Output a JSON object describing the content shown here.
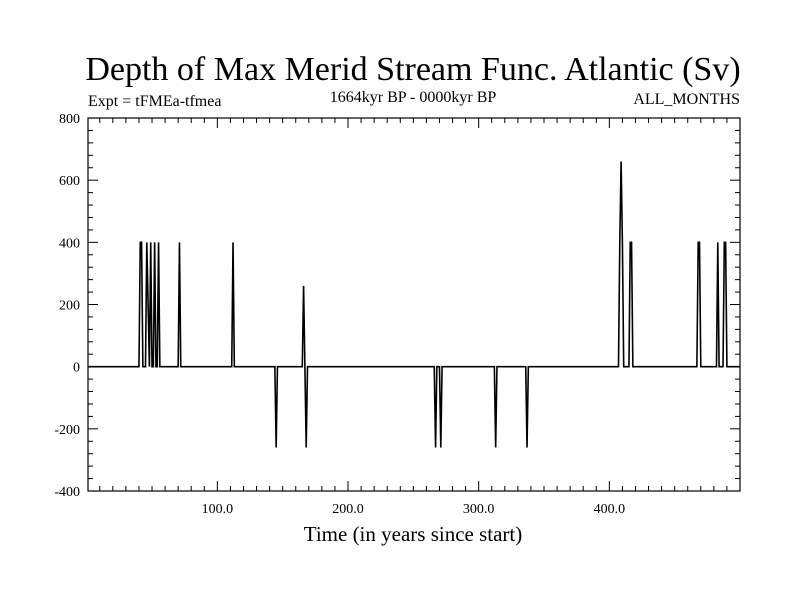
{
  "chart_data": {
    "type": "line",
    "title": "Depth of Max Merid Stream Func. Atlantic (Sv)",
    "subtitle_left": "Expt = tFMEa-tfmea",
    "subtitle_center": "1664kyr BP - 0000kyr BP",
    "subtitle_right": "ALL_MONTHS",
    "xlabel": "Time (in years since start)",
    "ylabel": "",
    "xlim": [
      1,
      500
    ],
    "ylim": [
      -400,
      800
    ],
    "xticks": [
      100,
      200,
      300,
      400
    ],
    "xtick_labels": [
      "100.0",
      "200.0",
      "300.0",
      "400.0"
    ],
    "yticks": [
      -400,
      -200,
      0,
      200,
      400,
      600,
      800
    ],
    "ytick_labels": [
      "-400",
      "-200",
      "0",
      "200",
      "400",
      "600",
      "800"
    ],
    "grid": false,
    "legend": "none",
    "series": [
      {
        "color": "#000000",
        "x": [
          1,
          40,
          41,
          42,
          43,
          44,
          45,
          46,
          47,
          48,
          49,
          50,
          51,
          52,
          53,
          54,
          55,
          56,
          57,
          58,
          70,
          71,
          72,
          73,
          111,
          112,
          113,
          114,
          144,
          145,
          146,
          147,
          165,
          166,
          167,
          168,
          169,
          170,
          266,
          267,
          268,
          269,
          270,
          271,
          272,
          273,
          312,
          313,
          314,
          315,
          336,
          337,
          338,
          339,
          407,
          408,
          409,
          410,
          411,
          412,
          415,
          416,
          417,
          418,
          419,
          467,
          468,
          469,
          470,
          482,
          483,
          484,
          487,
          488,
          489,
          490,
          500
        ],
        "y": [
          0,
          0,
          400,
          400,
          0,
          0,
          0,
          400,
          200,
          0,
          400,
          0,
          0,
          400,
          0,
          0,
          400,
          0,
          0,
          0,
          0,
          400,
          0,
          0,
          0,
          400,
          0,
          0,
          0,
          -260,
          0,
          0,
          0,
          260,
          0,
          -260,
          0,
          0,
          0,
          -260,
          0,
          0,
          0,
          -260,
          0,
          0,
          0,
          -260,
          0,
          0,
          0,
          -260,
          0,
          0,
          0,
          400,
          660,
          400,
          0,
          0,
          0,
          400,
          400,
          0,
          0,
          0,
          400,
          400,
          0,
          0,
          400,
          0,
          0,
          400,
          400,
          0,
          0
        ]
      }
    ]
  }
}
